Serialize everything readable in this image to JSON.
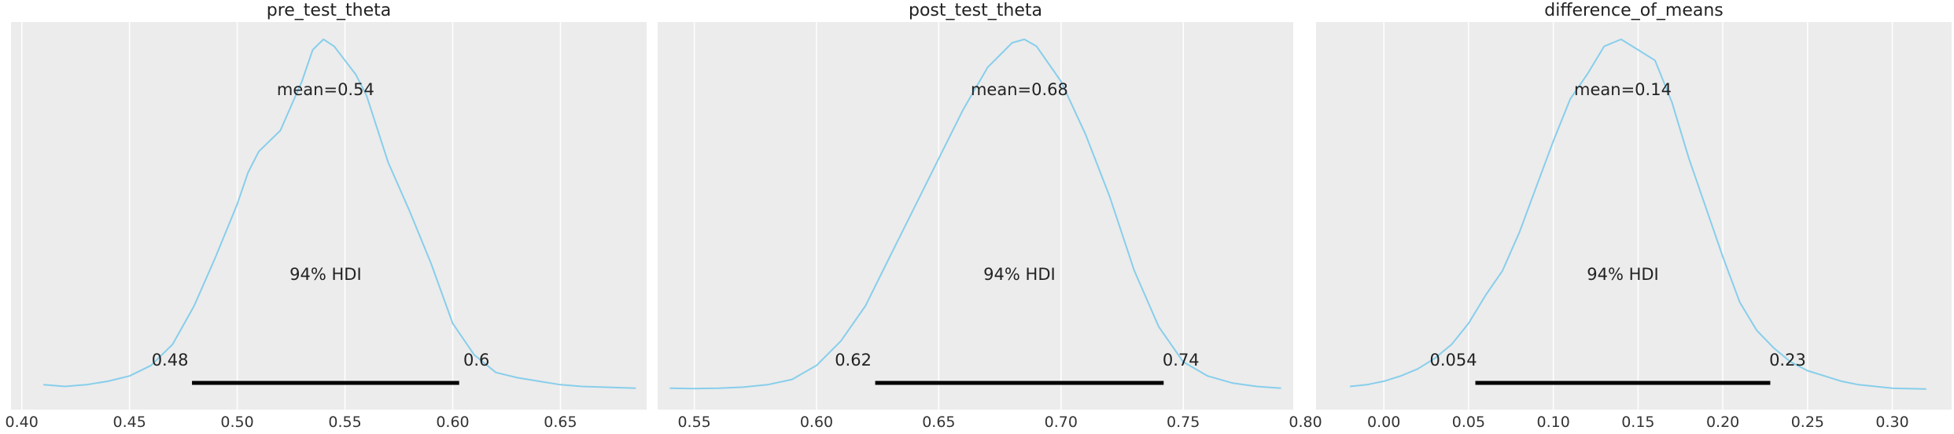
{
  "chart_data": [
    {
      "type": "area",
      "title": "pre_test_theta",
      "xlabel": "",
      "ylabel": "",
      "xlim": [
        0.395,
        0.69
      ],
      "xticks": [
        0.4,
        0.45,
        0.5,
        0.55,
        0.6,
        0.65
      ],
      "xtick_labels": [
        "0.40",
        "0.45",
        "0.50",
        "0.55",
        "0.60",
        "0.65"
      ],
      "grid": true,
      "curve_color": "#87ceeb",
      "mean_label": "mean=0.54",
      "hdi_label": "94% HDI",
      "hdi": [
        0.479,
        0.603
      ],
      "hdi_low_label": "0.48",
      "hdi_high_label": "0.6",
      "density": {
        "x": [
          0.41,
          0.42,
          0.43,
          0.44,
          0.45,
          0.46,
          0.47,
          0.48,
          0.49,
          0.5,
          0.505,
          0.51,
          0.52,
          0.53,
          0.535,
          0.54,
          0.545,
          0.55,
          0.555,
          0.56,
          0.57,
          0.58,
          0.59,
          0.6,
          0.61,
          0.62,
          0.63,
          0.64,
          0.65,
          0.66,
          0.67,
          0.685
        ],
        "y": [
          0.015,
          0.01,
          0.015,
          0.025,
          0.04,
          0.07,
          0.13,
          0.24,
          0.38,
          0.53,
          0.62,
          0.68,
          0.74,
          0.88,
          0.97,
          1.0,
          0.98,
          0.94,
          0.9,
          0.84,
          0.65,
          0.51,
          0.36,
          0.19,
          0.1,
          0.05,
          0.035,
          0.025,
          0.015,
          0.01,
          0.008,
          0.005
        ]
      }
    },
    {
      "type": "area",
      "title": "post_test_theta",
      "xlabel": "",
      "ylabel": "",
      "xlim": [
        0.535,
        0.795
      ],
      "xticks": [
        0.55,
        0.6,
        0.65,
        0.7,
        0.75,
        0.8
      ],
      "xtick_labels": [
        "0.55",
        "0.60",
        "0.65",
        "0.70",
        "0.75",
        "0.80"
      ],
      "grid": true,
      "curve_color": "#87ceeb",
      "mean_label": "mean=0.68",
      "hdi_label": "94% HDI",
      "hdi": [
        0.624,
        0.742
      ],
      "hdi_low_label": "0.62",
      "hdi_high_label": "0.74",
      "density": {
        "x": [
          0.54,
          0.55,
          0.56,
          0.57,
          0.58,
          0.59,
          0.6,
          0.61,
          0.62,
          0.63,
          0.64,
          0.65,
          0.66,
          0.67,
          0.68,
          0.685,
          0.69,
          0.7,
          0.71,
          0.72,
          0.73,
          0.74,
          0.75,
          0.76,
          0.77,
          0.78,
          0.79
        ],
        "y": [
          0.005,
          0.004,
          0.005,
          0.008,
          0.015,
          0.03,
          0.07,
          0.14,
          0.24,
          0.38,
          0.52,
          0.66,
          0.8,
          0.92,
          0.99,
          1.0,
          0.98,
          0.88,
          0.73,
          0.55,
          0.34,
          0.18,
          0.08,
          0.04,
          0.02,
          0.01,
          0.005
        ]
      }
    },
    {
      "type": "area",
      "title": "difference_of_means",
      "xlabel": "",
      "ylabel": "",
      "xlim": [
        -0.04,
        0.335
      ],
      "xticks": [
        0.0,
        0.05,
        0.1,
        0.15,
        0.2,
        0.25,
        0.3
      ],
      "xtick_labels": [
        "0.00",
        "0.05",
        "0.10",
        "0.15",
        "0.20",
        "0.25",
        "0.30"
      ],
      "grid": true,
      "curve_color": "#87ceeb",
      "mean_label": "mean=0.14",
      "hdi_label": "94% HDI",
      "hdi": [
        0.054,
        0.228
      ],
      "hdi_low_label": "0.054",
      "hdi_high_label": "0.23",
      "density": {
        "x": [
          -0.02,
          -0.01,
          0.0,
          0.01,
          0.02,
          0.03,
          0.04,
          0.05,
          0.06,
          0.07,
          0.08,
          0.09,
          0.1,
          0.11,
          0.12,
          0.13,
          0.14,
          0.15,
          0.16,
          0.17,
          0.18,
          0.19,
          0.2,
          0.21,
          0.22,
          0.23,
          0.24,
          0.25,
          0.26,
          0.27,
          0.28,
          0.29,
          0.3,
          0.32
        ],
        "y": [
          0.01,
          0.015,
          0.025,
          0.04,
          0.06,
          0.09,
          0.13,
          0.19,
          0.27,
          0.34,
          0.45,
          0.58,
          0.71,
          0.83,
          0.9,
          0.98,
          1.0,
          0.97,
          0.94,
          0.82,
          0.66,
          0.52,
          0.38,
          0.25,
          0.17,
          0.12,
          0.08,
          0.055,
          0.04,
          0.025,
          0.015,
          0.01,
          0.005,
          0.003
        ]
      }
    }
  ]
}
